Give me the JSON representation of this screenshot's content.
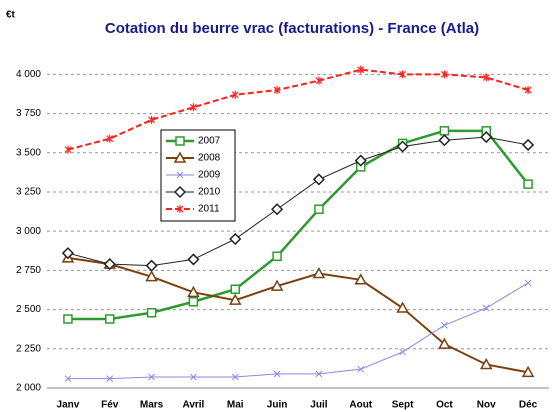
{
  "chart_data": {
    "type": "line",
    "title": "Cotation du beurre vrac (facturations) - France (Atla)",
    "y_label": "€t",
    "categories": [
      "Janv",
      "Fév",
      "Mars",
      "Avril",
      "Mai",
      "Juin",
      "Juil",
      "Aout",
      "Sept",
      "Oct",
      "Nov",
      "Déc"
    ],
    "series": [
      {
        "name": "2007",
        "color": "#2e9a2e",
        "marker": "square",
        "values": [
          2440,
          2440,
          2480,
          2550,
          2630,
          2840,
          3140,
          3410,
          3560,
          3640,
          3640,
          3300
        ]
      },
      {
        "name": "2008",
        "color": "#7b3f10",
        "marker": "triangle",
        "values": [
          2830,
          2790,
          2710,
          2610,
          2560,
          2650,
          2730,
          2690,
          2510,
          2280,
          2150,
          2100
        ]
      },
      {
        "name": "2009",
        "color": "#8a8ae0",
        "marker": "x",
        "values": [
          2060,
          2060,
          2070,
          2070,
          2070,
          2090,
          2090,
          2120,
          2230,
          2400,
          2510,
          2670
        ]
      },
      {
        "name": "2010",
        "color": "#222222",
        "marker": "diamond",
        "values": [
          2860,
          2790,
          2780,
          2820,
          2950,
          3140,
          3330,
          3450,
          3540,
          3580,
          3600,
          3550
        ]
      },
      {
        "name": "2011",
        "color": "#ff2020",
        "marker": "star",
        "dashed": true,
        "values": [
          3520,
          3590,
          3710,
          3790,
          3870,
          3900,
          3960,
          4030,
          4000,
          4000,
          3980,
          3900
        ]
      }
    ],
    "ylim": [
      2000,
      4200
    ],
    "yticks": [
      {
        "value": 2000,
        "label": "2 000"
      },
      {
        "value": 2250,
        "label": "2 250"
      },
      {
        "value": 2500,
        "label": "2 500"
      },
      {
        "value": 2750,
        "label": "2 750"
      },
      {
        "value": 3000,
        "label": "3 000"
      },
      {
        "value": 3250,
        "label": "3 250"
      },
      {
        "value": 3500,
        "label": "3 500"
      },
      {
        "value": 3750,
        "label": "3 750"
      },
      {
        "value": 4000,
        "label": "4 000"
      }
    ],
    "grid": true
  }
}
